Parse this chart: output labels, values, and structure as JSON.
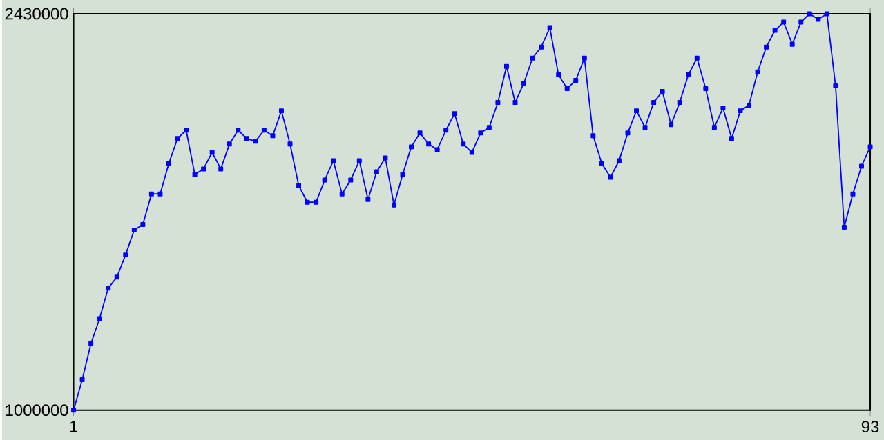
{
  "chart_data": {
    "type": "line",
    "x": [
      1,
      2,
      3,
      4,
      5,
      6,
      7,
      8,
      9,
      10,
      11,
      12,
      13,
      14,
      15,
      16,
      17,
      18,
      19,
      20,
      21,
      22,
      23,
      24,
      25,
      26,
      27,
      28,
      29,
      30,
      31,
      32,
      33,
      34,
      35,
      36,
      37,
      38,
      39,
      40,
      41,
      42,
      43,
      44,
      45,
      46,
      47,
      48,
      49,
      50,
      51,
      52,
      53,
      54,
      55,
      56,
      57,
      58,
      59,
      60,
      61,
      62,
      63,
      64,
      65,
      66,
      67,
      68,
      69,
      70,
      71,
      72,
      73,
      74,
      75,
      76,
      77,
      78,
      79,
      80,
      81,
      82,
      83,
      84,
      85,
      86,
      87,
      88,
      89,
      90,
      91,
      92,
      93
    ],
    "series": [
      {
        "color": "#0000ff",
        "values": [
          1000000,
          1110000,
          1240000,
          1330000,
          1440000,
          1480000,
          1560000,
          1650000,
          1670000,
          1780000,
          1780000,
          1890000,
          1980000,
          2010000,
          1850000,
          1870000,
          1930000,
          1870000,
          1960000,
          2010000,
          1980000,
          1970000,
          2010000,
          1990000,
          2080000,
          1960000,
          1810000,
          1750000,
          1750000,
          1830000,
          1900000,
          1780000,
          1830000,
          1900000,
          1760000,
          1860000,
          1910000,
          1740000,
          1850000,
          1950000,
          2000000,
          1960000,
          1940000,
          2010000,
          2070000,
          1960000,
          1930000,
          2000000,
          2020000,
          2110000,
          2240000,
          2110000,
          2180000,
          2270000,
          2310000,
          2380000,
          2210000,
          2160000,
          2190000,
          2270000,
          1990000,
          1890000,
          1840000,
          1900000,
          2000000,
          2080000,
          2020000,
          2110000,
          2150000,
          2030000,
          2110000,
          2210000,
          2270000,
          2160000,
          2020000,
          2090000,
          1980000,
          2080000,
          2100000,
          2220000,
          2310000,
          2370000,
          2400000,
          2320000,
          2400000,
          2430000,
          2410000,
          2430000,
          2170000,
          1660000,
          1780000,
          1880000,
          1950000
        ]
      }
    ],
    "xlim": [
      1,
      93
    ],
    "ylim": [
      1000000,
      2430000
    ],
    "xticks": [
      1,
      93
    ],
    "yticks": [
      1000000,
      2430000
    ],
    "marker": "square",
    "line_style": "solid"
  }
}
